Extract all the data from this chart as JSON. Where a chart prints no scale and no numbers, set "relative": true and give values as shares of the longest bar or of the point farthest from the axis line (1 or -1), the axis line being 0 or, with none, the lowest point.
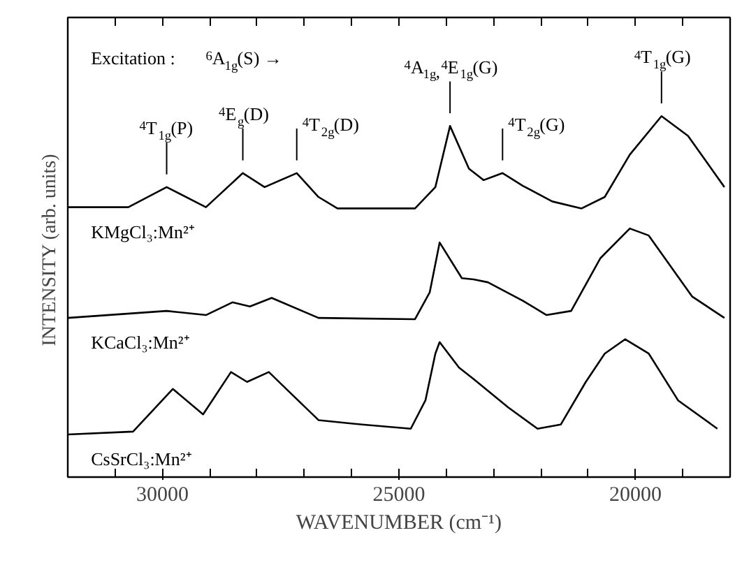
{
  "chart_data": {
    "type": "line",
    "relative": true,
    "xlabel": "WAVENUMBER (cm⁻¹)",
    "ylabel": "INTENSITY  (arb. units)",
    "xlim": [
      32000,
      18000
    ],
    "xticks": [
      30000,
      25000,
      20000
    ],
    "grid": false,
    "series": [
      {
        "name": "KMgCl₃:Mn²⁺",
        "color": "#000000",
        "x": [
          32000,
          30720,
          29910,
          29080,
          28300,
          27840,
          27160,
          26700,
          26300,
          24660,
          24230,
          23920,
          23520,
          23210,
          22810,
          22380,
          21760,
          21140,
          20650,
          20120,
          19450,
          18890,
          18120
        ],
        "values": [
          0.714,
          0.714,
          0.777,
          0.714,
          0.821,
          0.777,
          0.821,
          0.746,
          0.71,
          0.71,
          0.777,
          0.969,
          0.835,
          0.799,
          0.821,
          0.781,
          0.732,
          0.71,
          0.746,
          0.879,
          1.0,
          0.938,
          0.777
        ]
      },
      {
        "name": "KCaCl₃:Mn²⁺",
        "color": "#000000",
        "x": [
          32000,
          29910,
          29080,
          28520,
          28150,
          27690,
          26700,
          24660,
          24350,
          24140,
          23670,
          23420,
          23120,
          22380,
          21880,
          21360,
          20740,
          20120,
          19720,
          18800,
          18120
        ],
        "values": [
          0.366,
          0.388,
          0.375,
          0.415,
          0.402,
          0.429,
          0.366,
          0.362,
          0.446,
          0.603,
          0.491,
          0.487,
          0.478,
          0.42,
          0.375,
          0.388,
          0.554,
          0.647,
          0.625,
          0.433,
          0.366
        ]
      },
      {
        "name": "CsSrCl₃:Mn²⁺",
        "color": "#000000",
        "x": [
          32000,
          30620,
          29780,
          29140,
          28550,
          28210,
          27750,
          27320,
          26700,
          25780,
          24750,
          24440,
          24230,
          24140,
          23730,
          23420,
          22690,
          22070,
          21580,
          21050,
          20650,
          20220,
          19720,
          19100,
          18270
        ],
        "values": [
          0.0,
          0.009,
          0.143,
          0.063,
          0.196,
          0.165,
          0.196,
          0.134,
          0.045,
          0.031,
          0.018,
          0.107,
          0.254,
          0.29,
          0.21,
          0.174,
          0.085,
          0.018,
          0.031,
          0.165,
          0.254,
          0.299,
          0.254,
          0.107,
          0.018
        ]
      }
    ],
    "annotations": [
      "Excitation :   $^{6}$A$_{1g}$(S) →",
      {
        "text": "$^{4}$T$_{1g}$(P)",
        "x": 29910,
        "y": 0.777
      },
      {
        "text": "$^{4}$E$_{g}$(D)",
        "x": 28300,
        "y": 0.821
      },
      {
        "text": "$^{4}$T$_{2g}$(D)",
        "x": 27160,
        "y": 0.821
      },
      {
        "text": "$^{4}$A$_{1g}$,$^{4}$E$_{1g}$(G)",
        "x": 23920,
        "y": 0.969
      },
      {
        "text": "$^{4}$T$_{2g}$(G)",
        "x": 22810,
        "y": 0.821
      },
      {
        "text": "$^{4}$T$_{1g}$(G)",
        "x": 19450,
        "y": 1.0
      }
    ]
  }
}
